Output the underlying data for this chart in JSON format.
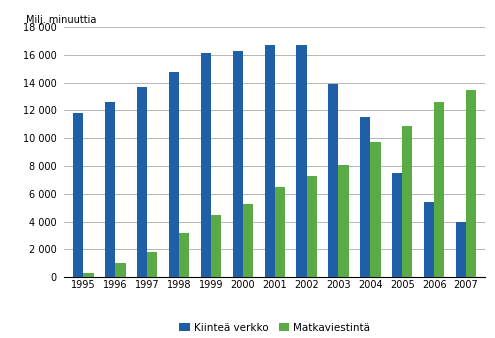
{
  "years": [
    1995,
    1996,
    1997,
    1998,
    1999,
    2000,
    2001,
    2002,
    2003,
    2004,
    2005,
    2006,
    2007
  ],
  "kiintea": [
    11800,
    12600,
    13700,
    14800,
    16100,
    16300,
    16700,
    16700,
    13900,
    11500,
    7500,
    5400,
    4000
  ],
  "matka": [
    300,
    1000,
    1800,
    3200,
    4500,
    5300,
    6500,
    7300,
    8100,
    9700,
    10900,
    12600,
    13500
  ],
  "kiintea_color": "#1F5FA6",
  "matka_color": "#5AAB46",
  "ylabel": "Milj. minuuttia",
  "ylim": [
    0,
    18000
  ],
  "yticks": [
    0,
    2000,
    4000,
    6000,
    8000,
    10000,
    12000,
    14000,
    16000,
    18000
  ],
  "legend_kiintea": "Kiinteä verkko",
  "legend_matka": "Matkaviestintä",
  "background_color": "#ffffff",
  "bar_width": 0.32,
  "grid_color": "#999999"
}
